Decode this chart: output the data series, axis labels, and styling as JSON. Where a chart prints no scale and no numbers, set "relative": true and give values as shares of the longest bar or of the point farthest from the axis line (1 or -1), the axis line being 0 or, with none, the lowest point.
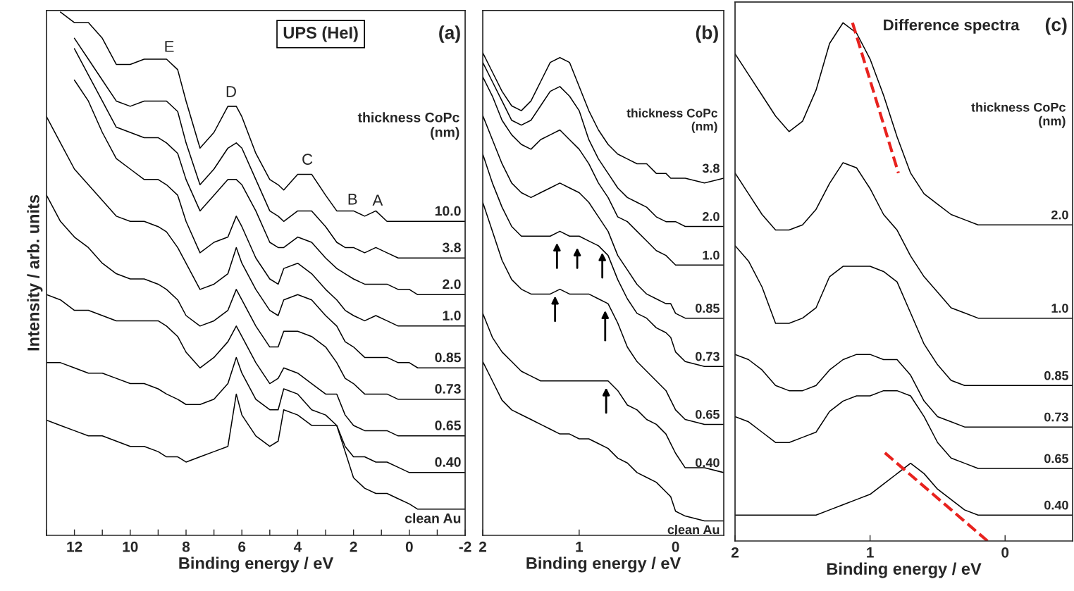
{
  "chart_data": [
    {
      "type": "line",
      "relative": true,
      "xlabel": "Binding energy / eV",
      "ylabel": "Intensity / arb. units",
      "xlim": [
        13,
        -2
      ],
      "xticks": [
        12,
        10,
        8,
        6,
        4,
        2,
        0,
        -2,
        {
          "value": 13,
          "label": null
        },
        {
          "value": 11,
          "label": null
        },
        {
          "value": 9,
          "label": null
        },
        {
          "value": 7,
          "label": null
        },
        {
          "value": 5,
          "label": null
        },
        {
          "value": 3,
          "label": null
        },
        {
          "value": 1,
          "label": null
        },
        {
          "value": -1,
          "label": null
        }
      ],
      "x": [
        13,
        12.5,
        12,
        11.5,
        11,
        10.5,
        10,
        9.5,
        9,
        8.7,
        8.3,
        8,
        7.5,
        7,
        6.5,
        6.2,
        6,
        5.5,
        5,
        4.7,
        4.5,
        4,
        3.5,
        3,
        2.6,
        2.3,
        2,
        1.6,
        1.2,
        0.8,
        0.4,
        0,
        -0.3,
        -1,
        -2
      ],
      "series": [
        {
          "name": "10.0",
          "color": "#000000",
          "values": [
            null,
            1.0,
            0.98,
            0.98,
            0.95,
            0.9,
            0.9,
            0.91,
            0.91,
            0.91,
            0.89,
            0.83,
            0.74,
            0.77,
            0.82,
            0.82,
            0.8,
            0.73,
            0.68,
            0.67,
            0.66,
            0.69,
            0.69,
            0.65,
            0.62,
            0.62,
            0.62,
            0.61,
            0.62,
            0.6,
            0.6,
            0.6,
            0.6,
            0.6,
            0.6
          ]
        },
        {
          "name": "3.8",
          "color": "#000000",
          "values": [
            null,
            null,
            0.95,
            0.91,
            0.87,
            0.83,
            0.82,
            0.83,
            0.83,
            0.83,
            0.81,
            0.75,
            0.67,
            0.7,
            0.74,
            0.75,
            0.74,
            0.68,
            0.62,
            0.61,
            0.6,
            0.62,
            0.62,
            0.59,
            0.56,
            0.55,
            0.55,
            0.54,
            0.55,
            0.54,
            0.53,
            0.53,
            0.53,
            0.53,
            0.53
          ]
        },
        {
          "name": "2.0",
          "color": "#000000",
          "values": [
            null,
            null,
            0.93,
            0.88,
            0.83,
            0.78,
            0.77,
            0.76,
            0.76,
            0.75,
            0.73,
            0.68,
            0.62,
            0.65,
            0.68,
            0.68,
            0.67,
            0.62,
            0.56,
            0.55,
            0.55,
            0.57,
            0.56,
            0.53,
            0.51,
            0.5,
            0.49,
            0.48,
            0.48,
            0.48,
            0.47,
            0.47,
            0.46,
            0.46,
            0.46
          ]
        },
        {
          "name": "1.0",
          "color": "#000000",
          "values": [
            null,
            null,
            0.87,
            0.83,
            0.77,
            0.72,
            0.7,
            0.68,
            0.68,
            0.67,
            0.65,
            0.6,
            0.54,
            0.56,
            0.57,
            0.61,
            0.59,
            0.53,
            0.49,
            0.48,
            0.51,
            0.52,
            0.5,
            0.47,
            0.45,
            0.43,
            0.42,
            0.41,
            0.42,
            0.41,
            0.4,
            0.4,
            0.4,
            0.4,
            0.4
          ]
        },
        {
          "name": "0.85",
          "color": "#000000",
          "values": [
            0.8,
            0.75,
            0.7,
            0.67,
            0.64,
            0.61,
            0.6,
            0.6,
            0.59,
            0.58,
            0.55,
            0.52,
            0.47,
            0.48,
            0.5,
            0.55,
            0.52,
            0.47,
            0.43,
            0.42,
            0.45,
            0.46,
            0.45,
            0.42,
            0.4,
            0.37,
            0.36,
            0.34,
            0.34,
            0.34,
            0.33,
            0.33,
            0.32,
            0.32,
            0.32
          ]
        },
        {
          "name": "0.73",
          "color": "#000000",
          "values": [
            0.65,
            0.6,
            0.57,
            0.55,
            0.52,
            0.5,
            0.49,
            0.49,
            0.48,
            0.47,
            0.45,
            0.42,
            0.4,
            0.41,
            0.43,
            0.47,
            0.45,
            0.4,
            0.36,
            0.36,
            0.39,
            0.39,
            0.38,
            0.36,
            0.33,
            0.3,
            0.29,
            0.27,
            0.27,
            0.27,
            0.26,
            0.26,
            0.26,
            0.26,
            0.26
          ]
        },
        {
          "name": "0.65",
          "color": "#000000",
          "values": [
            0.46,
            0.45,
            0.43,
            0.43,
            0.42,
            0.41,
            0.41,
            0.41,
            0.41,
            0.4,
            0.38,
            0.35,
            0.32,
            0.34,
            0.37,
            0.4,
            0.38,
            0.33,
            0.29,
            0.3,
            0.32,
            0.31,
            0.29,
            0.27,
            0.27,
            0.23,
            0.21,
            0.2,
            0.2,
            0.2,
            0.19,
            0.19,
            0.19,
            0.19,
            0.19
          ]
        },
        {
          "name": "0.40",
          "color": "#000000",
          "values": [
            0.33,
            0.33,
            0.32,
            0.31,
            0.31,
            0.3,
            0.29,
            0.29,
            0.28,
            0.27,
            0.26,
            0.25,
            0.25,
            0.26,
            0.29,
            0.34,
            0.31,
            0.26,
            0.24,
            0.24,
            0.28,
            0.27,
            0.24,
            0.23,
            0.21,
            0.17,
            0.15,
            0.15,
            0.14,
            0.14,
            0.13,
            0.12,
            0.12,
            0.12,
            0.12
          ]
        },
        {
          "name": "clean Au",
          "color": "#000000",
          "values": [
            0.22,
            0.21,
            0.2,
            0.19,
            0.19,
            0.18,
            0.17,
            0.17,
            0.16,
            0.15,
            0.15,
            0.14,
            0.15,
            0.16,
            0.17,
            0.27,
            0.23,
            0.19,
            0.17,
            0.18,
            0.24,
            0.23,
            0.21,
            0.21,
            0.21,
            0.16,
            0.11,
            0.09,
            0.08,
            0.08,
            0.07,
            0.06,
            0.05,
            0.05,
            0.05
          ]
        }
      ],
      "annotations": [
        "UPS (HeI)",
        "(a)",
        "thickness CoPc\n(nm)",
        "E",
        "D",
        "C",
        "B",
        "A"
      ]
    },
    {
      "type": "line",
      "relative": true,
      "xlabel": "Binding energy / eV",
      "xlim": [
        2,
        -0.5
      ],
      "xticks": [
        2,
        1,
        0
      ],
      "x": [
        2,
        1.9,
        1.8,
        1.7,
        1.6,
        1.5,
        1.4,
        1.3,
        1.2,
        1.1,
        1.0,
        0.9,
        0.8,
        0.7,
        0.6,
        0.5,
        0.4,
        0.3,
        0.2,
        0.1,
        0.05,
        0,
        -0.1,
        -0.3,
        -0.5
      ],
      "series": [
        {
          "name": "3.8",
          "color": "#000000",
          "values": [
            1.0,
            0.96,
            0.92,
            0.89,
            0.88,
            0.9,
            0.94,
            0.98,
            0.99,
            0.98,
            0.93,
            0.88,
            0.84,
            0.81,
            0.79,
            0.78,
            0.77,
            0.77,
            0.75,
            0.75,
            0.74,
            0.74,
            0.74,
            0.73,
            0.74
          ]
        },
        {
          "name": "2.0",
          "color": "#000000",
          "values": [
            0.98,
            0.94,
            0.9,
            0.86,
            0.85,
            0.86,
            0.89,
            0.92,
            0.93,
            0.91,
            0.88,
            0.82,
            0.78,
            0.75,
            0.72,
            0.7,
            0.69,
            0.68,
            0.66,
            0.65,
            0.65,
            0.65,
            0.64,
            0.64,
            0.64
          ]
        },
        {
          "name": "1.0",
          "color": "#000000",
          "values": [
            0.95,
            0.91,
            0.86,
            0.83,
            0.81,
            0.8,
            0.82,
            0.83,
            0.84,
            0.82,
            0.8,
            0.77,
            0.73,
            0.7,
            0.66,
            0.65,
            0.63,
            0.61,
            0.59,
            0.58,
            0.57,
            0.56,
            0.56,
            0.56,
            0.56
          ]
        },
        {
          "name": "0.85",
          "color": "#000000",
          "values": [
            0.87,
            0.82,
            0.77,
            0.73,
            0.71,
            0.7,
            0.71,
            0.72,
            0.73,
            0.72,
            0.71,
            0.69,
            0.66,
            0.63,
            0.58,
            0.55,
            0.52,
            0.5,
            0.49,
            0.48,
            0.48,
            0.46,
            0.45,
            0.45,
            0.45
          ]
        },
        {
          "name": "0.73",
          "color": "#000000",
          "values": [
            0.79,
            0.73,
            0.68,
            0.64,
            0.62,
            0.62,
            0.62,
            0.62,
            0.63,
            0.62,
            0.62,
            0.61,
            0.6,
            0.58,
            0.53,
            0.49,
            0.46,
            0.45,
            0.43,
            0.42,
            0.41,
            0.38,
            0.36,
            0.35,
            0.35
          ]
        },
        {
          "name": "0.65",
          "color": "#000000",
          "values": [
            0.69,
            0.63,
            0.57,
            0.53,
            0.51,
            0.5,
            0.5,
            0.5,
            0.51,
            0.5,
            0.5,
            0.5,
            0.49,
            0.48,
            0.44,
            0.39,
            0.36,
            0.34,
            0.32,
            0.3,
            0.28,
            0.26,
            0.24,
            0.23,
            0.23
          ]
        },
        {
          "name": "0.40",
          "color": "#000000",
          "values": [
            0.46,
            0.41,
            0.38,
            0.36,
            0.34,
            0.33,
            0.32,
            0.32,
            0.32,
            0.32,
            0.32,
            0.32,
            0.32,
            0.32,
            0.3,
            0.27,
            0.26,
            0.24,
            0.23,
            0.21,
            0.19,
            0.17,
            0.14,
            0.14,
            0.13
          ]
        },
        {
          "name": "clean Au",
          "color": "#000000",
          "values": [
            0.36,
            0.32,
            0.28,
            0.26,
            0.25,
            0.24,
            0.23,
            0.22,
            0.21,
            0.21,
            0.2,
            0.2,
            0.19,
            0.18,
            0.16,
            0.15,
            0.13,
            0.12,
            0.11,
            0.09,
            0.08,
            0.05,
            0.04,
            0.03,
            0.03
          ]
        }
      ],
      "annotations": [
        "(b)",
        "thickness CoPc\n(nm)"
      ]
    },
    {
      "type": "line",
      "relative": true,
      "xlabel": "Binding energy / eV",
      "xlim": [
        2,
        -0.5
      ],
      "xticks": [
        2,
        1,
        0
      ],
      "x": [
        2,
        1.9,
        1.8,
        1.7,
        1.6,
        1.5,
        1.4,
        1.3,
        1.2,
        1.1,
        1.0,
        0.9,
        0.8,
        0.7,
        0.6,
        0.5,
        0.4,
        0.3,
        0.2,
        0.1,
        0,
        -0.1,
        -0.2,
        -0.3,
        -0.4,
        -0.5
      ],
      "series": [
        {
          "name": "2.0",
          "color": "#000000",
          "values": [
            0.94,
            0.9,
            0.86,
            0.82,
            0.79,
            0.81,
            0.87,
            0.96,
            1.0,
            0.98,
            0.93,
            0.86,
            0.78,
            0.71,
            0.67,
            0.65,
            0.63,
            0.62,
            0.61,
            0.61,
            0.61,
            0.61,
            0.61,
            0.61,
            0.61,
            0.61
          ]
        },
        {
          "name": "1.0",
          "color": "#000000",
          "values": [
            0.71,
            0.67,
            0.63,
            0.6,
            0.6,
            0.61,
            0.64,
            0.69,
            0.73,
            0.72,
            0.68,
            0.63,
            0.6,
            0.55,
            0.51,
            0.48,
            0.45,
            0.44,
            0.43,
            0.43,
            0.43,
            0.43,
            0.43,
            0.43,
            0.43,
            0.43
          ]
        },
        {
          "name": "0.85",
          "color": "#000000",
          "values": [
            0.57,
            0.54,
            0.49,
            0.42,
            0.42,
            0.43,
            0.45,
            0.51,
            0.53,
            0.53,
            0.53,
            0.52,
            0.5,
            0.44,
            0.38,
            0.34,
            0.31,
            0.3,
            0.3,
            0.3,
            0.3,
            0.3,
            0.3,
            0.3,
            0.3,
            0.3
          ]
        },
        {
          "name": "0.73",
          "color": "#000000",
          "values": [
            0.36,
            0.35,
            0.33,
            0.3,
            0.29,
            0.29,
            0.3,
            0.33,
            0.35,
            0.36,
            0.36,
            0.35,
            0.35,
            0.32,
            0.27,
            0.24,
            0.23,
            0.22,
            0.22,
            0.22,
            0.22,
            0.22,
            0.22,
            0.22,
            0.22,
            0.22
          ]
        },
        {
          "name": "0.65",
          "color": "#000000",
          "values": [
            0.24,
            0.23,
            0.21,
            0.19,
            0.19,
            0.2,
            0.21,
            0.25,
            0.27,
            0.28,
            0.28,
            0.29,
            0.29,
            0.28,
            0.24,
            0.19,
            0.16,
            0.15,
            0.14,
            0.14,
            0.14,
            0.14,
            0.14,
            0.14,
            0.14,
            0.14
          ]
        },
        {
          "name": "0.40",
          "color": "#000000",
          "values": [
            0.05,
            0.05,
            0.05,
            0.05,
            0.05,
            0.05,
            0.05,
            0.06,
            0.07,
            0.08,
            0.09,
            0.11,
            0.13,
            0.15,
            0.13,
            0.1,
            0.08,
            0.06,
            0.05,
            0.05,
            0.05,
            0.05,
            0.05,
            0.05,
            0.05,
            0.05
          ]
        },
        {
          "type": "line",
          "color": "#e8221e",
          "line_style": "dashed",
          "x": [
            1.13,
            0.79
          ],
          "values": [
            1.0,
            0.71
          ]
        },
        {
          "type": "line",
          "color": "#e8221e",
          "line_style": "dashed",
          "x": [
            0.89,
            0.13
          ],
          "values": [
            0.17,
            0.0
          ]
        }
      ],
      "annotations": [
        "Difference spectra",
        "(c)",
        "thickness CoPc\n(nm)"
      ]
    }
  ]
}
